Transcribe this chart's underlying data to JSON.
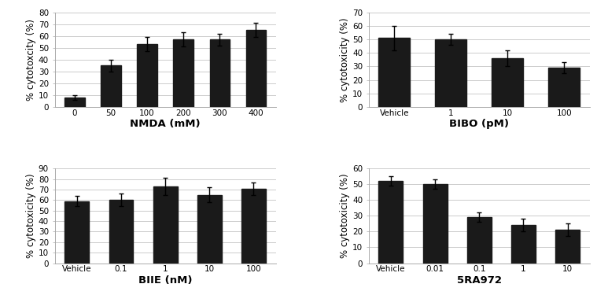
{
  "panel1": {
    "categories": [
      "0",
      "50",
      "100",
      "200",
      "300",
      "400"
    ],
    "values": [
      8,
      35,
      53,
      57,
      57,
      65
    ],
    "errors": [
      2,
      5,
      6,
      6,
      5,
      6
    ],
    "xlabel": "NMDA (mM)",
    "ylabel": "% cytotoxcity (%)",
    "ylim": [
      0,
      80
    ],
    "yticks": [
      0,
      10,
      20,
      30,
      40,
      50,
      60,
      70,
      80
    ]
  },
  "panel2": {
    "categories": [
      "Vehicle",
      "1",
      "10",
      "100"
    ],
    "values": [
      51,
      50,
      36,
      29
    ],
    "errors": [
      9,
      4,
      6,
      4
    ],
    "xlabel": "BIBO (pM)",
    "ylabel": "% cytotoxicity (%)",
    "ylim": [
      0,
      70
    ],
    "yticks": [
      0,
      10,
      20,
      30,
      40,
      50,
      60,
      70
    ]
  },
  "panel3": {
    "categories": [
      "Vehicle",
      "0.1",
      "1",
      "10",
      "100"
    ],
    "values": [
      59,
      60,
      73,
      65,
      71
    ],
    "errors": [
      5,
      6,
      8,
      7,
      6
    ],
    "xlabel": "BIIE (nM)",
    "ylabel": "% cytotoxicity (%)",
    "ylim": [
      0,
      90
    ],
    "yticks": [
      0,
      10,
      20,
      30,
      40,
      50,
      60,
      70,
      80,
      90
    ]
  },
  "panel4": {
    "categories": [
      "Vehicle",
      "0.01",
      "0.1",
      "1",
      "10"
    ],
    "values": [
      52,
      50,
      29,
      24,
      21
    ],
    "errors": [
      3,
      3,
      3,
      4,
      4
    ],
    "xlabel": "5RA972",
    "ylabel": "% cytotoxicity (%)",
    "ylim": [
      0,
      60
    ],
    "yticks": [
      0,
      10,
      20,
      30,
      40,
      50,
      60
    ]
  },
  "bar_color": "#1a1a1a",
  "bar_width": 0.55,
  "bg_color": "#ffffff",
  "grid_color": "#cccccc",
  "tick_fontsize": 7.5,
  "label_fontsize": 8.5,
  "xlabel_fontsize": 9.5
}
